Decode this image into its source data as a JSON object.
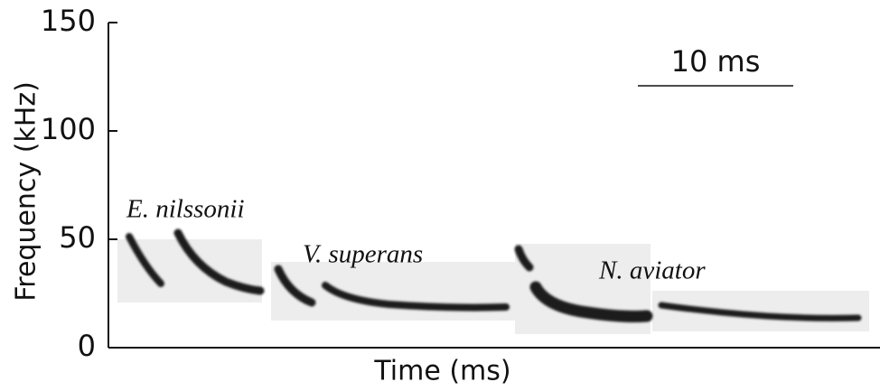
{
  "chart_data": {
    "type": "spectrogram",
    "x_label": "Time (ms)",
    "y_label": "Frequency (kHz)",
    "ylim": [
      0,
      150
    ],
    "yticks": [
      0,
      50,
      100,
      150
    ],
    "annotations": [
      "E. nilssonii",
      "V. superans",
      "N. aviator"
    ],
    "scale_bar_label": "10 ms"
  }
}
